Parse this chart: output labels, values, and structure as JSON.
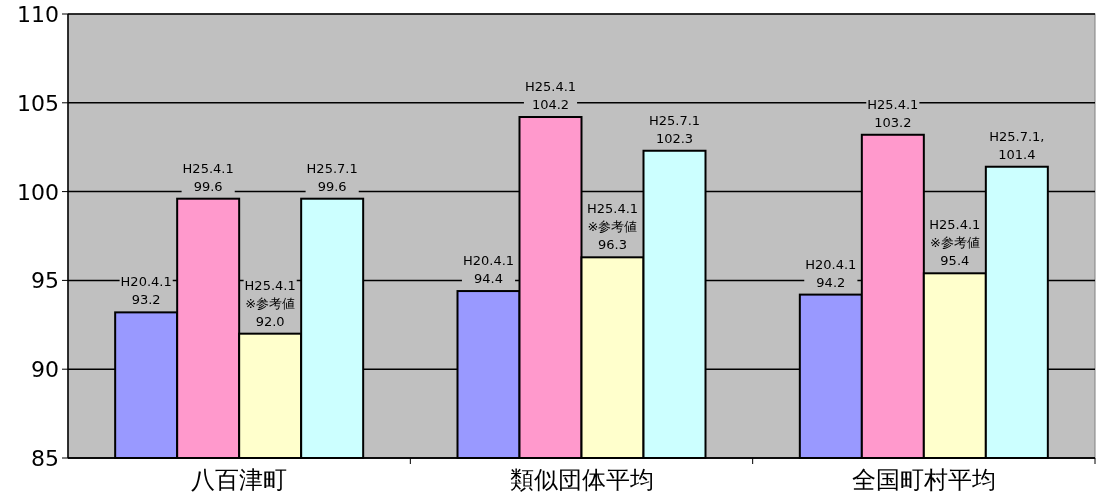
{
  "chart_data": {
    "type": "bar",
    "categories": [
      "八百津町",
      "類似団体平均",
      "全国町村平均"
    ],
    "series": [
      {
        "color": "#9999ff",
        "values": [
          93.2,
          94.4,
          94.2
        ],
        "value_labels": [
          "H20.4.1\n93.2",
          "H20.4.1\n94.4",
          "H20.4.1\n94.2"
        ]
      },
      {
        "color": "#ff99cc",
        "values": [
          99.6,
          104.2,
          103.2
        ],
        "value_labels": [
          "H25.4.1\n99.6",
          "H25.4.1\n104.2",
          "H25.4.1\n103.2"
        ]
      },
      {
        "color": "#ffffcc",
        "values": [
          92.0,
          96.3,
          95.4
        ],
        "value_labels": [
          "H25.4.1\n※参考値\n92.0",
          "H25.4.1\n※参考値\n96.3",
          "H25.4.1\n※参考値\n95.4"
        ]
      },
      {
        "color": "#ccffff",
        "values": [
          99.6,
          102.3,
          101.4
        ],
        "value_labels": [
          "H25.7.1\n99.6",
          "H25.7.1\n102.3",
          "H25.7.1,\n101.4"
        ]
      }
    ],
    "ylim": [
      85,
      110
    ],
    "yticks": [
      85,
      90,
      95,
      100,
      105,
      110
    ],
    "grid": "y"
  }
}
